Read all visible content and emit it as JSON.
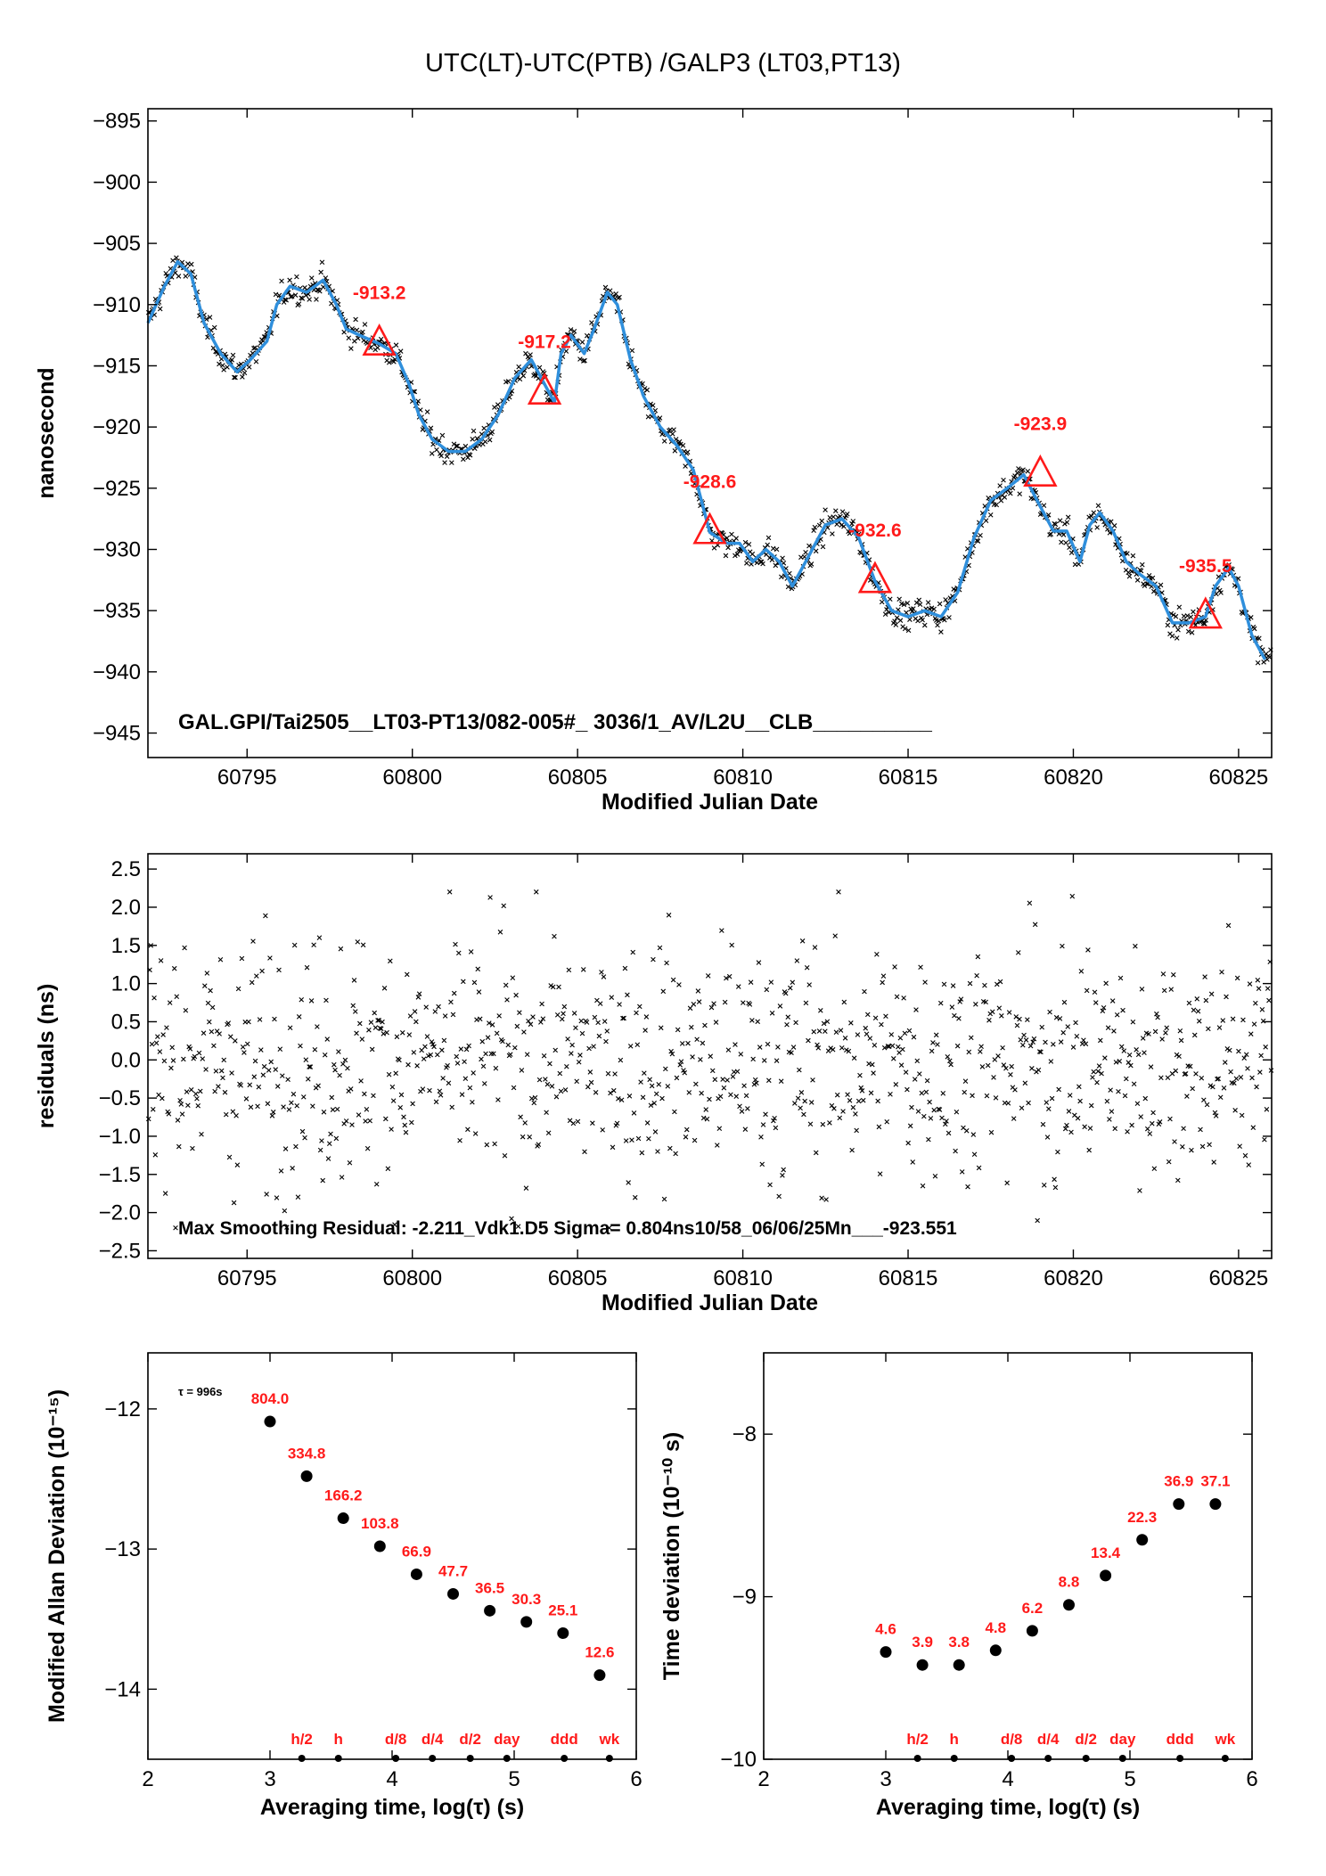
{
  "title": "UTC(LT)-UTC(PTB)  /GALP3  (LT03,PT13)",
  "colors": {
    "fit_line": "#2f8fdc",
    "annotation": "#ff1a1a",
    "points": "#000000"
  },
  "chart_data": [
    {
      "id": "top",
      "type": "scatter",
      "xlabel": "Modified Julian Date",
      "ylabel": "nanosecond",
      "xlim": [
        60792,
        60826
      ],
      "ylim": [
        -947,
        -894
      ],
      "xticks": [
        60795,
        60800,
        60805,
        60810,
        60815,
        60820,
        60825
      ],
      "yticks": [
        -895,
        -900,
        -905,
        -910,
        -915,
        -920,
        -925,
        -930,
        -935,
        -940,
        -945
      ],
      "ytick_labels": [
        "−895",
        "−900",
        "−905",
        "−910",
        "−915",
        "−920",
        "−925",
        "−930",
        "−935",
        "−940",
        "−945"
      ],
      "smooth_curve": {
        "x": [
          60792.0,
          60792.5,
          60792.9,
          60793.3,
          60793.7,
          60794.2,
          60794.7,
          60795.1,
          60795.6,
          60795.9,
          60796.3,
          60796.8,
          60797.3,
          60797.7,
          60798.0,
          60798.4,
          60799.0,
          60799.5,
          60799.9,
          60800.2,
          60800.6,
          60801.1,
          60801.6,
          60802.1,
          60802.6,
          60803.1,
          60803.6,
          60804.0,
          60804.3,
          60804.5,
          60804.8,
          60805.2,
          60805.5,
          60805.9,
          60806.2,
          60806.6,
          60807.0,
          60807.5,
          60808.0,
          60808.5,
          60809.0,
          60809.5,
          60809.9,
          60810.3,
          60810.7,
          60811.1,
          60811.5,
          60812.0,
          60812.5,
          60813.0,
          60813.5,
          60814.0,
          60814.5,
          60815.0,
          60815.5,
          60816.0,
          60816.5,
          60817.0,
          60817.5,
          60818.0,
          60818.5,
          60819.0,
          60819.4,
          60819.8,
          60820.2,
          60820.5,
          60820.8,
          60821.2,
          60821.6,
          60822.0,
          60822.5,
          60823.0,
          60823.5,
          60824.0,
          60824.3,
          60824.7,
          60825.0,
          60825.4,
          60825.8
        ],
        "y": [
          -911.5,
          -908.5,
          -906.5,
          -907.5,
          -911.5,
          -914.0,
          -915.5,
          -914.5,
          -913.0,
          -910.0,
          -908.5,
          -909.0,
          -908.0,
          -910.0,
          -912.0,
          -912.5,
          -913.2,
          -914.0,
          -916.5,
          -919.0,
          -921.0,
          -922.0,
          -922.0,
          -921.0,
          -919.0,
          -916.0,
          -914.5,
          -916.5,
          -918.0,
          -914.0,
          -912.5,
          -914.0,
          -912.0,
          -909.0,
          -910.0,
          -914.5,
          -917.5,
          -920.0,
          -921.5,
          -923.5,
          -928.6,
          -929.5,
          -929.5,
          -931.0,
          -930.0,
          -931.0,
          -933.0,
          -930.5,
          -928.0,
          -927.5,
          -929.0,
          -932.6,
          -935.0,
          -935.5,
          -935.0,
          -935.5,
          -933.5,
          -929.0,
          -926.0,
          -925.0,
          -923.9,
          -926.5,
          -928.5,
          -928.5,
          -931.0,
          -928.0,
          -927.0,
          -928.5,
          -931.0,
          -932.0,
          -933.0,
          -936.0,
          -936.0,
          -935.5,
          -933.0,
          -931.5,
          -933.0,
          -937.0,
          -939.0
        ]
      },
      "markers": [
        {
          "x": 60799,
          "y": -913.2,
          "label": "-913.2"
        },
        {
          "x": 60804,
          "y": -917.2,
          "label": "-917.2"
        },
        {
          "x": 60809,
          "y": -928.6,
          "label": "-928.6"
        },
        {
          "x": 60814,
          "y": -932.6,
          "label": "-932.6"
        },
        {
          "x": 60819,
          "y": -923.9,
          "label": "-923.9"
        },
        {
          "x": 60824,
          "y": -935.5,
          "label": "-935.5"
        }
      ],
      "info_text": "GAL.GPI/Tai2505__LT03-PT13/082-005#_  3036/1_AV/L2U__CLB__________"
    },
    {
      "id": "residuals",
      "type": "scatter",
      "xlabel": "Modified Julian Date",
      "ylabel": "residuals (ns)",
      "xlim": [
        60792,
        60826
      ],
      "ylim": [
        -2.6,
        2.7
      ],
      "xticks": [
        60795,
        60800,
        60805,
        60810,
        60815,
        60820,
        60825
      ],
      "yticks": [
        2.5,
        2.0,
        1.5,
        1.0,
        0.5,
        0.0,
        -0.5,
        -1.0,
        -1.5,
        -2.0,
        -2.5
      ],
      "ytick_labels": [
        "2.5",
        "2.0",
        "1.5",
        "1.0",
        "0.5",
        "0.0",
        "−0.5",
        "−1.0",
        "−1.5",
        "−2.0",
        "−2.5"
      ],
      "sigma": 0.804,
      "info_text": "Max Smoothing Residual: -2.211_Vdk1.D5  Sigma= 0.804ns10/58_06/06/25Mn___-923.551"
    },
    {
      "id": "mdev",
      "type": "scatter",
      "xlabel": "Averaging time, log(τ) (s)",
      "ylabel": "Modified Allan Deviation (10⁻¹⁵)",
      "xlim": [
        2,
        6
      ],
      "ylim": [
        -14.5,
        -11.6
      ],
      "xticks": [
        2,
        3,
        4,
        5,
        6
      ],
      "yticks": [
        -12,
        -13,
        -14
      ],
      "ytick_labels": [
        "−12",
        "−13",
        "−14"
      ],
      "tau_note": "τ = 996s",
      "x": [
        3.0,
        3.3,
        3.6,
        3.9,
        4.2,
        4.5,
        4.8,
        5.1,
        5.4,
        5.7
      ],
      "y": [
        -12.09,
        -12.48,
        -12.78,
        -12.98,
        -13.18,
        -13.32,
        -13.44,
        -13.52,
        -13.6,
        -13.9
      ],
      "labels": [
        "804.0",
        "334.8",
        "166.2",
        "103.8",
        "66.9",
        "47.7",
        "36.5",
        "30.3",
        "25.1",
        "12.6"
      ],
      "markers": [
        {
          "x": 3.26,
          "label": "h/2"
        },
        {
          "x": 3.56,
          "label": "h"
        },
        {
          "x": 4.03,
          "label": "d/8"
        },
        {
          "x": 4.33,
          "label": "d/4"
        },
        {
          "x": 4.64,
          "label": "d/2"
        },
        {
          "x": 4.94,
          "label": "day"
        },
        {
          "x": 5.41,
          "label": "ddd"
        },
        {
          "x": 5.78,
          "label": "wk"
        }
      ]
    },
    {
      "id": "tdev",
      "type": "scatter",
      "xlabel": "Averaging time, log(τ) (s)",
      "ylabel": "Time deviation (10⁻¹⁰ s)",
      "xlim": [
        2,
        6
      ],
      "ylim": [
        -10,
        -7.5
      ],
      "xticks": [
        2,
        3,
        4,
        5,
        6
      ],
      "yticks": [
        -8,
        -9,
        -10
      ],
      "ytick_labels": [
        "−8",
        "−9",
        "−10"
      ],
      "x": [
        3.0,
        3.3,
        3.6,
        3.9,
        4.2,
        4.5,
        4.8,
        5.1,
        5.4,
        5.7
      ],
      "y": [
        -9.34,
        -9.42,
        -9.42,
        -9.33,
        -9.21,
        -9.05,
        -8.87,
        -8.65,
        -8.43,
        -8.43
      ],
      "labels": [
        "4.6",
        "3.9",
        "3.8",
        "4.8",
        "6.2",
        "8.8",
        "13.4",
        "22.3",
        "36.9",
        "37.1"
      ],
      "markers": [
        {
          "x": 3.26,
          "label": "h/2"
        },
        {
          "x": 3.56,
          "label": "h"
        },
        {
          "x": 4.03,
          "label": "d/8"
        },
        {
          "x": 4.33,
          "label": "d/4"
        },
        {
          "x": 4.64,
          "label": "d/2"
        },
        {
          "x": 4.94,
          "label": "day"
        },
        {
          "x": 5.41,
          "label": "ddd"
        },
        {
          "x": 5.78,
          "label": "wk"
        }
      ]
    }
  ]
}
